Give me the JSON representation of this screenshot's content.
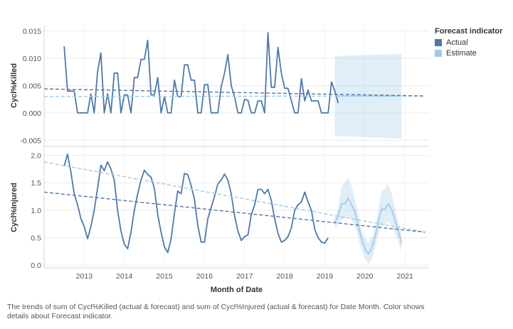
{
  "chart_data": {
    "type": "line",
    "xlabel": "Month of Date",
    "x_ticks": [
      "2013",
      "2014",
      "2015",
      "2016",
      "2017",
      "2018",
      "2019",
      "2020",
      "2021"
    ],
    "legend": {
      "title": "Forecast indicator",
      "items": [
        {
          "label": "Actual",
          "color": "#4e79a7"
        },
        {
          "label": "Estimate",
          "color": "#a0cbe8"
        }
      ],
      "position": "right"
    },
    "panels": [
      {
        "ylabel": "Cycl%Killed",
        "ylim": [
          -0.006,
          0.016
        ],
        "y_ticks": [
          -0.005,
          0.0,
          0.005,
          0.01,
          0.015
        ],
        "y_tick_labels": [
          "-0.005",
          "0.000",
          "0.005",
          "0.010",
          "0.015"
        ],
        "actual_start": "2012-07",
        "actual": [
          0.0122,
          0.004,
          0.004,
          0.004,
          0.0,
          0.0,
          0.0,
          0.0,
          0.0035,
          0.0,
          0.0075,
          0.011,
          0.0,
          0.0035,
          0.0,
          0.0073,
          0.0073,
          0.0,
          0.0033,
          0.0033,
          0.0,
          0.0065,
          0.0065,
          0.0098,
          0.0098,
          0.0133,
          0.0033,
          0.0033,
          0.0065,
          0.0,
          0.003,
          0.0,
          0.0,
          0.006,
          0.003,
          0.003,
          0.0088,
          0.0088,
          0.006,
          0.006,
          0.0,
          0.0,
          0.0052,
          0.0052,
          0.0,
          0.0,
          0.0,
          0.0048,
          0.0073,
          0.0107,
          0.005,
          0.003,
          0.0,
          0.0,
          0.0025,
          0.0023,
          0.0,
          0.0,
          0.0022,
          0.0022,
          0.0,
          0.0147,
          0.0047,
          0.0047,
          0.012,
          0.0073,
          0.0045,
          0.0045,
          0.0022,
          0.0,
          0.0,
          0.0063,
          0.0022,
          0.0042,
          0.0022,
          0.0022,
          0.0022,
          0.0,
          0.0,
          0.0,
          0.0057,
          0.004,
          0.0018
        ],
        "trend_actual": {
          "start": [
            "2012-01",
            0.0044
          ],
          "end": [
            "2021-07",
            0.0031
          ]
        },
        "trend_estimate": {
          "start": [
            "2012-01",
            0.003
          ],
          "end": [
            "2021-07",
            0.0031
          ]
        },
        "forecast_start": "2019-04",
        "forecast_end": "2020-12",
        "forecast_value": 0.0031,
        "band_upper": {
          "start": 0.0104,
          "end": 0.0108
        },
        "band_lower": {
          "start": -0.0042,
          "end": -0.0047
        }
      },
      {
        "ylabel": "Cycl%Injured",
        "ylim": [
          -0.05,
          2.15
        ],
        "y_ticks": [
          0.0,
          0.5,
          1.0,
          1.5,
          2.0
        ],
        "y_tick_labels": [
          "0.0",
          "0.5",
          "1.0",
          "1.5",
          "2.0"
        ],
        "actual_start": "2012-07",
        "actual": [
          1.8,
          2.02,
          1.7,
          1.3,
          1.1,
          0.85,
          0.7,
          0.48,
          0.7,
          1.0,
          1.4,
          1.82,
          1.72,
          1.88,
          1.75,
          1.55,
          1.0,
          0.62,
          0.38,
          0.3,
          0.6,
          1.0,
          1.3,
          1.55,
          1.73,
          1.65,
          1.6,
          1.4,
          0.92,
          0.6,
          0.33,
          0.23,
          0.48,
          0.95,
          1.35,
          1.3,
          1.67,
          1.65,
          1.45,
          1.2,
          0.72,
          0.42,
          0.42,
          0.85,
          1.05,
          1.25,
          1.48,
          1.55,
          1.66,
          1.55,
          1.3,
          0.9,
          0.62,
          0.45,
          0.52,
          0.55,
          0.92,
          1.1,
          1.38,
          1.38,
          1.3,
          1.38,
          1.18,
          0.85,
          0.58,
          0.42,
          0.45,
          0.52,
          0.68,
          1.0,
          1.1,
          1.15,
          1.33,
          1.15,
          1.0,
          0.65,
          0.5,
          0.42,
          0.4,
          0.5
        ],
        "trend_actual": {
          "start": [
            "2012-01",
            1.33
          ],
          "end": [
            "2021-07",
            0.6
          ]
        },
        "trend_estimate": {
          "start": [
            "2012-01",
            1.88
          ],
          "end": [
            "2021-07",
            0.6
          ]
        },
        "forecast_start": "2019-04",
        "forecast": [
          0.78,
          0.9,
          1.12,
          1.12,
          1.22,
          1.1,
          0.98,
          0.72,
          0.48,
          0.3,
          0.2,
          0.3,
          0.5,
          0.78,
          1.02,
          1.02,
          1.12,
          1.02,
          0.82,
          0.62,
          0.4
        ],
        "band_upper": [
          0.88,
          1.05,
          1.45,
          1.5,
          1.6,
          1.45,
          1.2,
          0.95,
          0.65,
          0.5,
          0.4,
          0.5,
          0.7,
          1.0,
          1.35,
          1.4,
          1.48,
          1.3,
          1.05,
          0.8,
          0.55
        ],
        "band_lower": [
          0.65,
          0.75,
          0.82,
          0.85,
          0.9,
          0.82,
          0.72,
          0.5,
          0.28,
          0.12,
          0.02,
          0.1,
          0.3,
          0.55,
          0.72,
          0.72,
          0.8,
          0.72,
          0.58,
          0.42,
          0.25
        ]
      }
    ]
  },
  "caption": "The trends of sum of Cycl%Killed (actual & forecast)  and sum of Cycl%Injured (actual & forecast)  for Date Month.  Color shows details about Forecast indicator."
}
